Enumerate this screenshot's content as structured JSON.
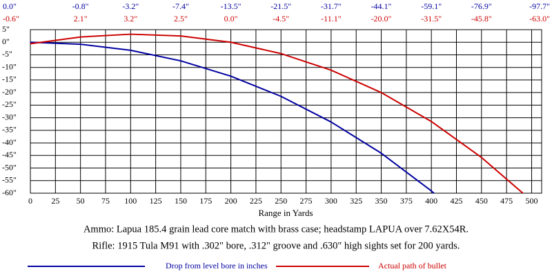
{
  "chart_data": {
    "type": "line",
    "x_label": "Range in Yards",
    "notes": [
      "Ammo:  Lapua 185.4 grain lead core match with brass case; headstamp LAPUA over 7.62X54R.",
      "Rifle:  1915 Tula M91 with .302\" bore, .312\" groove and .630\" high sights set for 200 yards."
    ],
    "x": [
      0,
      50,
      100,
      150,
      200,
      250,
      300,
      350,
      400,
      450,
      500
    ],
    "series": [
      {
        "name": "Drop from level bore in inches",
        "color": "#0000a0",
        "values": [
          0.0,
          -0.8,
          -3.2,
          -7.4,
          -13.5,
          -21.5,
          -31.7,
          -44.1,
          -59.1,
          -76.9,
          -97.7
        ],
        "value_labels": [
          "0.0\"",
          "-0.8\"",
          "-3.2\"",
          "-7.4\"",
          "-13.5\"",
          "-21.5\"",
          "-31.7\"",
          "-44.1\"",
          "-59.1\"",
          "-76.9\"",
          "-97.7\""
        ]
      },
      {
        "name": "Actual path of bullet",
        "color": "#cc0000",
        "values": [
          -0.6,
          2.1,
          3.2,
          2.5,
          0.0,
          -4.5,
          -11.1,
          -20.0,
          -31.5,
          -45.8,
          -63.0
        ],
        "value_labels": [
          "-0.6\"",
          "2.1\"",
          "3.2\"",
          "2.5\"",
          "0.0\"",
          "-4.5\"",
          "-11.1\"",
          "-20.0\"",
          "-31.5\"",
          "-45.8\"",
          "-63.0\""
        ]
      }
    ],
    "xlim": [
      0,
      510
    ],
    "xticks": [
      0,
      25,
      50,
      75,
      100,
      125,
      150,
      175,
      200,
      225,
      250,
      275,
      300,
      325,
      350,
      375,
      400,
      425,
      450,
      475,
      500
    ],
    "ylim": [
      -60,
      5
    ],
    "yticks": [
      {
        "value": 5,
        "label": "5\""
      },
      {
        "value": 0,
        "label": "0\""
      },
      {
        "value": -5,
        "label": "-5\""
      },
      {
        "value": -10,
        "label": "-10\""
      },
      {
        "value": -15,
        "label": "-15\""
      },
      {
        "value": -20,
        "label": "-20\""
      },
      {
        "value": -25,
        "label": "-25\""
      },
      {
        "value": -30,
        "label": "-30\""
      },
      {
        "value": -35,
        "label": "-35\""
      },
      {
        "value": -40,
        "label": "-40\""
      },
      {
        "value": -45,
        "label": "-45\""
      },
      {
        "value": -50,
        "label": "-50\""
      },
      {
        "value": -55,
        "label": "-55\""
      },
      {
        "value": -60,
        "label": "-60\""
      }
    ],
    "grid": true
  }
}
